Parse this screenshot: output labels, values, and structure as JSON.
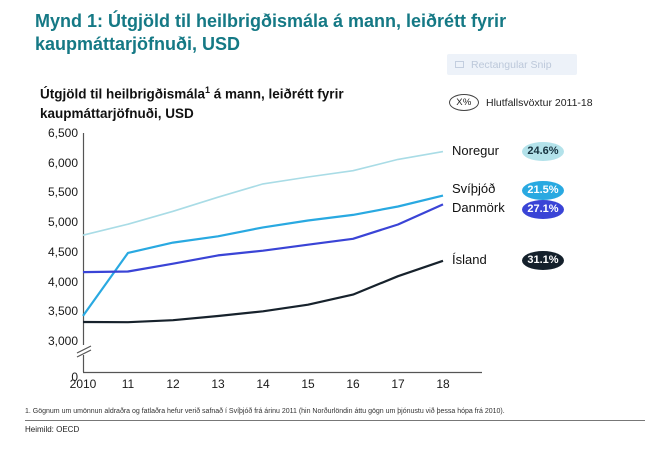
{
  "page": {
    "heading": "Mynd 1: Útgjöld til heilbrigðismála á mann, leiðrétt fyrir kaupmáttarjöfnuði, USD",
    "heading_color": "#157985"
  },
  "snip_tooltip": {
    "label": "Rectangular Snip"
  },
  "chart": {
    "title_part1": "Útgjöld til heilbrigðismála",
    "title_sup": "1",
    "title_part2": " á mann, leiðrétt fyrir kaupmáttarjöfnuði, USD",
    "growth_legend": {
      "badge": "X%",
      "label": "Hlutfallsvöxtur 2011-18"
    }
  },
  "chart_data": {
    "type": "line",
    "title": "Útgjöld til heilbrigðismála¹ á mann, leiðrétt fyrir kaupmáttarjöfnuði, USD",
    "categories": [
      "2010",
      "11",
      "12",
      "13",
      "14",
      "15",
      "16",
      "17",
      "18"
    ],
    "series": [
      {
        "name": "Noregur",
        "growth": "24.6%",
        "color": "#a9dce6",
        "badge_bg": "#b3e2ea",
        "badge_text_color": "#16323f",
        "values": [
          4780,
          4966,
          5183,
          5420,
          5644,
          5760,
          5865,
          6055,
          6187
        ]
      },
      {
        "name": "Svíþjóð",
        "growth": "21.5%",
        "color": "#29a9e1",
        "badge_bg": "#29a9e1",
        "badge_text_color": "#ffffff",
        "values": [
          3423,
          4483,
          4655,
          4761,
          4911,
          5028,
          5122,
          5264,
          5447
        ]
      },
      {
        "name": "Danmörk",
        "growth": "27.1%",
        "color": "#3a44d6",
        "badge_bg": "#3a44d6",
        "badge_text_color": "#ffffff",
        "values": [
          4160,
          4169,
          4300,
          4440,
          4520,
          4620,
          4720,
          4960,
          5299
        ]
      },
      {
        "name": "Ísland",
        "growth": "31.1%",
        "color": "#17222c",
        "badge_bg": "#14202b",
        "badge_text_color": "#ffffff",
        "values": [
          3320,
          3317,
          3350,
          3420,
          3500,
          3610,
          3780,
          4090,
          4349
        ]
      }
    ],
    "yticks": [
      6500,
      6000,
      5500,
      5000,
      4500,
      4000,
      3500,
      3000
    ],
    "ytick_labels": [
      "6,500",
      "6,000",
      "5,500",
      "5,000",
      "4,500",
      "4,000",
      "3,500",
      "3,000"
    ],
    "zero_label": "0",
    "axis_break": true,
    "ylim_plot": [
      3000,
      6500
    ],
    "xlabel": "",
    "ylabel": "",
    "grid": false,
    "legend_position": "right-of-line-ends"
  },
  "footnote": "1. Gögnum um umönnun aldraðra og fatlaðra hefur verið safnað í Svíþjóð frá árinu 2011 (hin Norðurlöndin áttu gögn um þjónustu við þessa hópa frá 2010).",
  "source": "Heimild: OECD"
}
